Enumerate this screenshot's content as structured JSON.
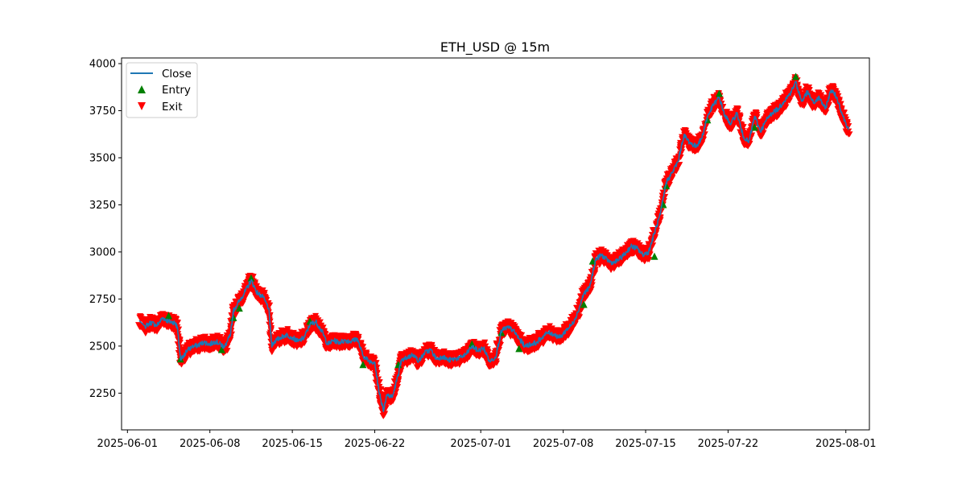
{
  "chart_data": {
    "type": "line",
    "title": "ETH_USD @ 15m",
    "xlabel": "",
    "ylabel": "",
    "x_ticks": [
      "2025-06-01",
      "2025-06-08",
      "2025-06-15",
      "2025-06-22",
      "2025-07-01",
      "2025-07-08",
      "2025-07-15",
      "2025-07-22",
      "2025-08-01"
    ],
    "y_ticks": [
      2250,
      2500,
      2750,
      3000,
      3250,
      3500,
      3750,
      4000
    ],
    "xlim": [
      "2025-05-31T12:00",
      "2025-08-03T00:00"
    ],
    "ylim": [
      2055,
      4030
    ],
    "grid": false,
    "legend": {
      "placement": "top-left",
      "entries": [
        {
          "label": "Close",
          "marker": "line",
          "color": "#1f77b4"
        },
        {
          "label": "Entry",
          "marker": "triangle-up",
          "color": "#008000"
        },
        {
          "label": "Exit",
          "marker": "triangle-down",
          "color": "#ff0000"
        }
      ]
    },
    "series": [
      {
        "name": "Close",
        "color": "#1f77b4",
        "points": [
          [
            "2025-06-02T00:00",
            2635
          ],
          [
            "2025-06-02T12:00",
            2605
          ],
          [
            "2025-06-03T00:00",
            2625
          ],
          [
            "2025-06-03T12:00",
            2610
          ],
          [
            "2025-06-04T00:00",
            2650
          ],
          [
            "2025-06-04T12:00",
            2630
          ],
          [
            "2025-06-05T00:00",
            2625
          ],
          [
            "2025-06-05T06:00",
            2600
          ],
          [
            "2025-06-05T12:00",
            2430
          ],
          [
            "2025-06-05T18:00",
            2440
          ],
          [
            "2025-06-06T00:00",
            2475
          ],
          [
            "2025-06-06T12:00",
            2495
          ],
          [
            "2025-06-07T00:00",
            2505
          ],
          [
            "2025-06-07T12:00",
            2520
          ],
          [
            "2025-06-08T00:00",
            2510
          ],
          [
            "2025-06-08T12:00",
            2525
          ],
          [
            "2025-06-09T00:00",
            2505
          ],
          [
            "2025-06-09T06:00",
            2495
          ],
          [
            "2025-06-09T18:00",
            2560
          ],
          [
            "2025-06-10T00:00",
            2690
          ],
          [
            "2025-06-10T12:00",
            2740
          ],
          [
            "2025-06-11T00:00",
            2790
          ],
          [
            "2025-06-11T12:00",
            2850
          ],
          [
            "2025-06-12T00:00",
            2785
          ],
          [
            "2025-06-12T12:00",
            2760
          ],
          [
            "2025-06-13T00:00",
            2700
          ],
          [
            "2025-06-13T06:00",
            2505
          ],
          [
            "2025-06-13T12:00",
            2525
          ],
          [
            "2025-06-14T00:00",
            2545
          ],
          [
            "2025-06-14T12:00",
            2560
          ],
          [
            "2025-06-15T00:00",
            2545
          ],
          [
            "2025-06-15T12:00",
            2525
          ],
          [
            "2025-06-16T00:00",
            2545
          ],
          [
            "2025-06-16T12:00",
            2615
          ],
          [
            "2025-06-17T00:00",
            2630
          ],
          [
            "2025-06-17T12:00",
            2580
          ],
          [
            "2025-06-18T00:00",
            2510
          ],
          [
            "2025-06-18T12:00",
            2530
          ],
          [
            "2025-06-19T00:00",
            2520
          ],
          [
            "2025-06-19T12:00",
            2530
          ],
          [
            "2025-06-20T00:00",
            2525
          ],
          [
            "2025-06-20T12:00",
            2540
          ],
          [
            "2025-06-21T00:00",
            2450
          ],
          [
            "2025-06-21T12:00",
            2420
          ],
          [
            "2025-06-22T00:00",
            2415
          ],
          [
            "2025-06-22T06:00",
            2300
          ],
          [
            "2025-06-22T12:00",
            2220
          ],
          [
            "2025-06-22T18:00",
            2160
          ],
          [
            "2025-06-23T00:00",
            2240
          ],
          [
            "2025-06-23T12:00",
            2230
          ],
          [
            "2025-06-24T00:00",
            2350
          ],
          [
            "2025-06-24T06:00",
            2420
          ],
          [
            "2025-06-24T18:00",
            2440
          ],
          [
            "2025-06-25T06:00",
            2455
          ],
          [
            "2025-06-25T18:00",
            2420
          ],
          [
            "2025-06-26T06:00",
            2465
          ],
          [
            "2025-06-26T18:00",
            2480
          ],
          [
            "2025-06-27T06:00",
            2430
          ],
          [
            "2025-06-27T18:00",
            2445
          ],
          [
            "2025-06-28T06:00",
            2425
          ],
          [
            "2025-06-28T18:00",
            2430
          ],
          [
            "2025-06-29T06:00",
            2440
          ],
          [
            "2025-06-29T18:00",
            2455
          ],
          [
            "2025-06-30T06:00",
            2500
          ],
          [
            "2025-06-30T18:00",
            2475
          ],
          [
            "2025-07-01T06:00",
            2490
          ],
          [
            "2025-07-01T18:00",
            2420
          ],
          [
            "2025-07-02T06:00",
            2440
          ],
          [
            "2025-07-02T18:00",
            2580
          ],
          [
            "2025-07-03T06:00",
            2600
          ],
          [
            "2025-07-03T18:00",
            2585
          ],
          [
            "2025-07-04T06:00",
            2540
          ],
          [
            "2025-07-04T18:00",
            2500
          ],
          [
            "2025-07-05T06:00",
            2510
          ],
          [
            "2025-07-05T18:00",
            2520
          ],
          [
            "2025-07-06T06:00",
            2550
          ],
          [
            "2025-07-06T18:00",
            2575
          ],
          [
            "2025-07-07T06:00",
            2560
          ],
          [
            "2025-07-07T18:00",
            2545
          ],
          [
            "2025-07-08T06:00",
            2585
          ],
          [
            "2025-07-08T18:00",
            2615
          ],
          [
            "2025-07-09T06:00",
            2680
          ],
          [
            "2025-07-09T18:00",
            2780
          ],
          [
            "2025-07-10T06:00",
            2810
          ],
          [
            "2025-07-10T18:00",
            2960
          ],
          [
            "2025-07-11T06:00",
            2985
          ],
          [
            "2025-07-11T18:00",
            2955
          ],
          [
            "2025-07-12T06:00",
            2940
          ],
          [
            "2025-07-12T18:00",
            2960
          ],
          [
            "2025-07-13T06:00",
            2990
          ],
          [
            "2025-07-13T18:00",
            3030
          ],
          [
            "2025-07-14T06:00",
            3020
          ],
          [
            "2025-07-14T18:00",
            2985
          ],
          [
            "2025-07-15T06:00",
            3000
          ],
          [
            "2025-07-15T18:00",
            3100
          ],
          [
            "2025-07-16T06:00",
            3200
          ],
          [
            "2025-07-16T18:00",
            3370
          ],
          [
            "2025-07-17T06:00",
            3420
          ],
          [
            "2025-07-17T18:00",
            3480
          ],
          [
            "2025-07-18T06:00",
            3620
          ],
          [
            "2025-07-18T18:00",
            3580
          ],
          [
            "2025-07-19T06:00",
            3560
          ],
          [
            "2025-07-19T18:00",
            3600
          ],
          [
            "2025-07-20T06:00",
            3720
          ],
          [
            "2025-07-20T18:00",
            3780
          ],
          [
            "2025-07-21T06:00",
            3820
          ],
          [
            "2025-07-21T18:00",
            3720
          ],
          [
            "2025-07-22T06:00",
            3680
          ],
          [
            "2025-07-22T18:00",
            3740
          ],
          [
            "2025-07-23T06:00",
            3620
          ],
          [
            "2025-07-23T18:00",
            3580
          ],
          [
            "2025-07-24T06:00",
            3720
          ],
          [
            "2025-07-24T18:00",
            3640
          ],
          [
            "2025-07-25T06:00",
            3700
          ],
          [
            "2025-07-25T18:00",
            3740
          ],
          [
            "2025-07-26T06:00",
            3760
          ],
          [
            "2025-07-26T18:00",
            3800
          ],
          [
            "2025-07-27T06:00",
            3840
          ],
          [
            "2025-07-27T18:00",
            3900
          ],
          [
            "2025-07-28T06:00",
            3800
          ],
          [
            "2025-07-28T18:00",
            3850
          ],
          [
            "2025-07-29T06:00",
            3790
          ],
          [
            "2025-07-29T18:00",
            3820
          ],
          [
            "2025-07-30T06:00",
            3760
          ],
          [
            "2025-07-30T18:00",
            3860
          ],
          [
            "2025-07-31T06:00",
            3820
          ],
          [
            "2025-07-31T18:00",
            3720
          ],
          [
            "2025-08-01T06:00",
            3650
          ]
        ]
      }
    ],
    "entry_markers": [
      [
        "2025-06-04T12:00",
        2660
      ],
      [
        "2025-06-05T12:00",
        2430
      ],
      [
        "2025-06-09T00:00",
        2480
      ],
      [
        "2025-06-10T00:00",
        2650
      ],
      [
        "2025-06-10T12:00",
        2700
      ],
      [
        "2025-06-11T12:00",
        2860
      ],
      [
        "2025-06-16T12:00",
        2630
      ],
      [
        "2025-06-21T00:00",
        2400
      ],
      [
        "2025-06-24T00:00",
        2400
      ],
      [
        "2025-06-30T06:00",
        2510
      ],
      [
        "2025-07-02T18:00",
        2570
      ],
      [
        "2025-07-04T06:00",
        2485
      ],
      [
        "2025-07-09T18:00",
        2720
      ],
      [
        "2025-07-10T12:00",
        2950
      ],
      [
        "2025-07-15T18:00",
        2975
      ],
      [
        "2025-07-16T12:00",
        3250
      ],
      [
        "2025-07-16T18:00",
        3350
      ],
      [
        "2025-07-20T06:00",
        3700
      ],
      [
        "2025-07-21T06:00",
        3840
      ],
      [
        "2025-07-24T06:00",
        3660
      ],
      [
        "2025-07-27T18:00",
        3930
      ]
    ],
    "exit_band": {
      "color": "#ff0000",
      "offset": 22
    }
  }
}
